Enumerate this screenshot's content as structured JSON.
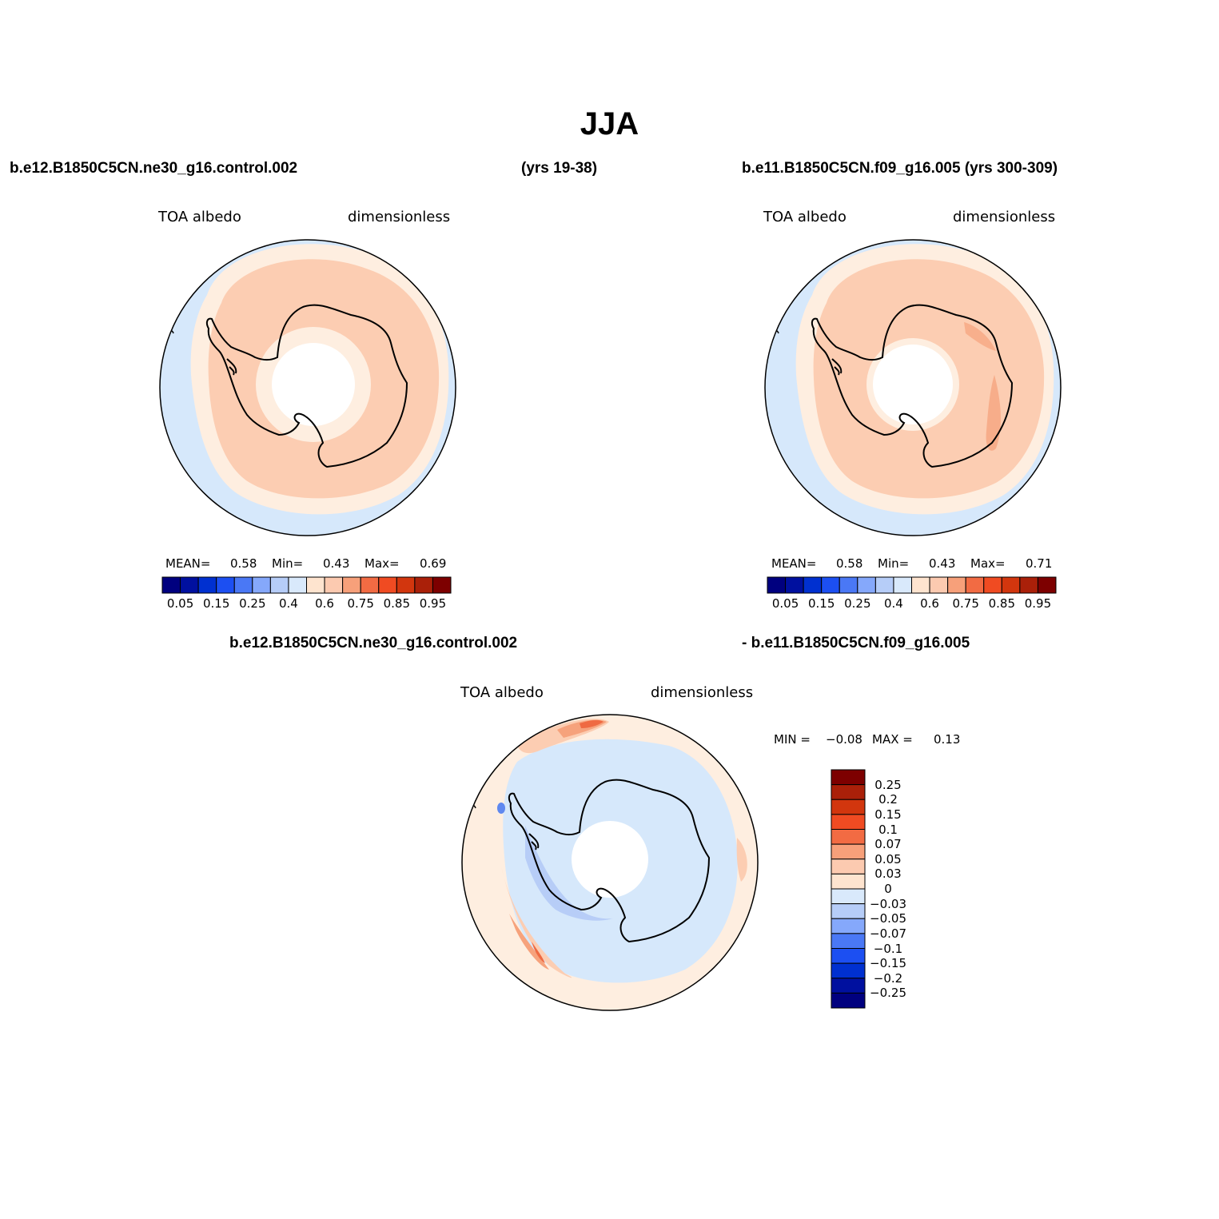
{
  "page_title": "JJA",
  "panel1": {
    "case_name": "b.e12.B1850C5CN.ne30_g16.control.002",
    "years": "(yrs 19-38)",
    "variable": "TOA albedo",
    "units": "dimensionless",
    "mean_label": "MEAN=",
    "mean_value": "0.58",
    "min_label": "Min=",
    "min_value": "0.43",
    "max_label": "Max=",
    "max_value": "0.69"
  },
  "panel2": {
    "case_name": "b.e11.B1850C5CN.f09_g16.005 (yrs 300-309)",
    "variable": "TOA albedo",
    "units": "dimensionless",
    "mean_label": "MEAN=",
    "mean_value": "0.58",
    "min_label": "Min=",
    "min_value": "0.43",
    "max_label": "Max=",
    "max_value": "0.71"
  },
  "panel3": {
    "case_left": "b.e12.B1850C5CN.ne30_g16.control.002",
    "case_right": "- b.e11.B1850C5CN.f09_g16.005",
    "variable": "TOA albedo",
    "units": "dimensionless",
    "min_label": "MIN =",
    "min_value": "−0.08",
    "max_label": "MAX =",
    "max_value": "0.13"
  },
  "colorbar_abs": {
    "colors": [
      "#00007f",
      "#00109f",
      "#0030d0",
      "#1c4ff2",
      "#4a78f5",
      "#85a8fb",
      "#b6cdf8",
      "#d9e9fb",
      "#fee4cf",
      "#fccab0",
      "#f7a07a",
      "#f26b43",
      "#f04b22",
      "#d2360e",
      "#aa2009",
      "#7d0000"
    ],
    "ticks": [
      "0.05",
      "0.15",
      "0.25",
      "0.4",
      "0.6",
      "0.75",
      "0.85",
      "0.95"
    ]
  },
  "colorbar_diff": {
    "colors_top_to_bottom": [
      "#7d0000",
      "#aa2009",
      "#d2360e",
      "#f04b22",
      "#f26b43",
      "#f7a07a",
      "#fccab0",
      "#fee4cf",
      "#d9e9fb",
      "#b6cdf8",
      "#85a8fb",
      "#4a78f5",
      "#1c4ff2",
      "#0030d0",
      "#00109f",
      "#00007f"
    ],
    "ticks_top_to_bottom": [
      "0.25",
      "0.2",
      "0.15",
      "0.1",
      "0.07",
      "0.05",
      "0.03",
      "0",
      "−0.03",
      "−0.05",
      "−0.07",
      "−0.1",
      "−0.15",
      "−0.2",
      "−0.25"
    ]
  },
  "map_colors": {
    "ocean_pale_blue": "#d6e8fb",
    "cream": "#feeee0",
    "salmon": "#fccdb2",
    "orange": "#f6a27c",
    "red_orange": "#ef6a42",
    "diff_blue": "#b7cdf7",
    "diff_blue_dark": "#5f88ef"
  }
}
